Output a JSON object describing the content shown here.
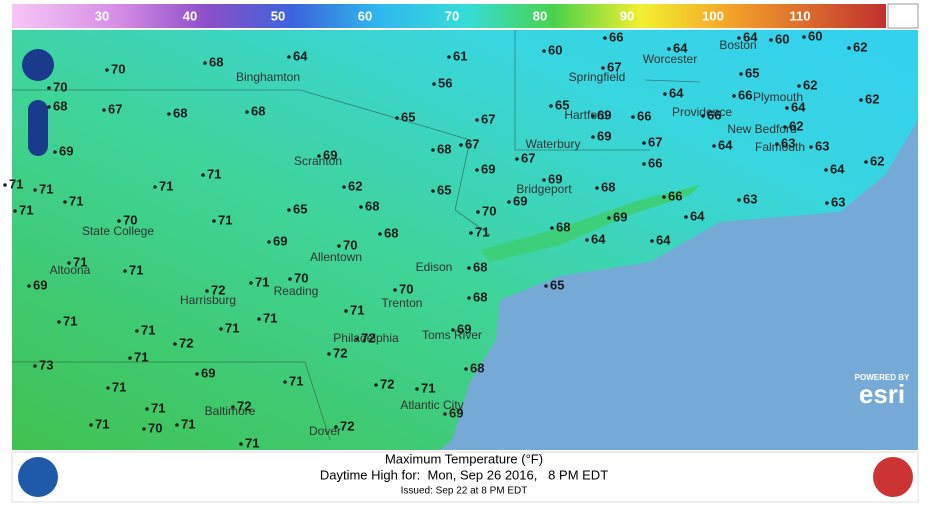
{
  "legend": {
    "labels": [
      30,
      40,
      50,
      60,
      70,
      80,
      90,
      100,
      110
    ]
  },
  "cities": [
    "Binghamton",
    "Scranton",
    "State College",
    "Altoona",
    "Harrisburg",
    "Reading",
    "Allentown",
    "Trenton",
    "Edison",
    "Philadelphia",
    "Toms River",
    "Atlantic City",
    "Baltimore",
    "Dover",
    "Bridgeport",
    "Waterbury",
    "Hartford",
    "Springfield",
    "Worcester",
    "Boston",
    "Providence",
    "New Bedford",
    "Falmouth",
    "Plymouth"
  ],
  "temps": [
    64,
    70,
    68,
    61,
    60,
    66,
    64,
    64,
    60,
    60,
    62,
    56,
    67,
    65,
    62,
    62,
    70,
    68,
    67,
    68,
    68,
    65,
    67,
    65,
    69,
    66,
    64,
    66,
    66,
    64,
    62,
    69,
    69,
    68,
    67,
    69,
    67,
    69,
    67,
    64,
    66,
    63,
    63,
    64,
    62,
    71,
    71,
    71,
    71,
    62,
    65,
    69,
    68,
    66,
    63,
    63,
    71,
    71,
    70,
    71,
    65,
    68,
    70,
    69,
    69,
    64,
    69,
    70,
    68,
    71,
    68,
    64,
    64,
    71,
    71,
    71,
    70,
    68,
    65,
    69,
    72,
    70,
    68,
    71,
    71,
    71,
    71,
    71,
    69,
    72,
    72,
    72,
    71,
    73,
    68,
    69,
    71,
    72,
    71,
    71,
    71,
    72,
    69,
    71,
    70,
    71,
    72,
    71
  ],
  "footer": {
    "title": "Maximum Temperature (°F)",
    "subtitle": "Daytime High for:  Mon, Sep 26 2016,   8 PM EDT",
    "issued": "Issued: Sep 22 at 8 PM EDT"
  },
  "attribution": {
    "powered_by": "POWERED BY",
    "brand": "esri"
  }
}
